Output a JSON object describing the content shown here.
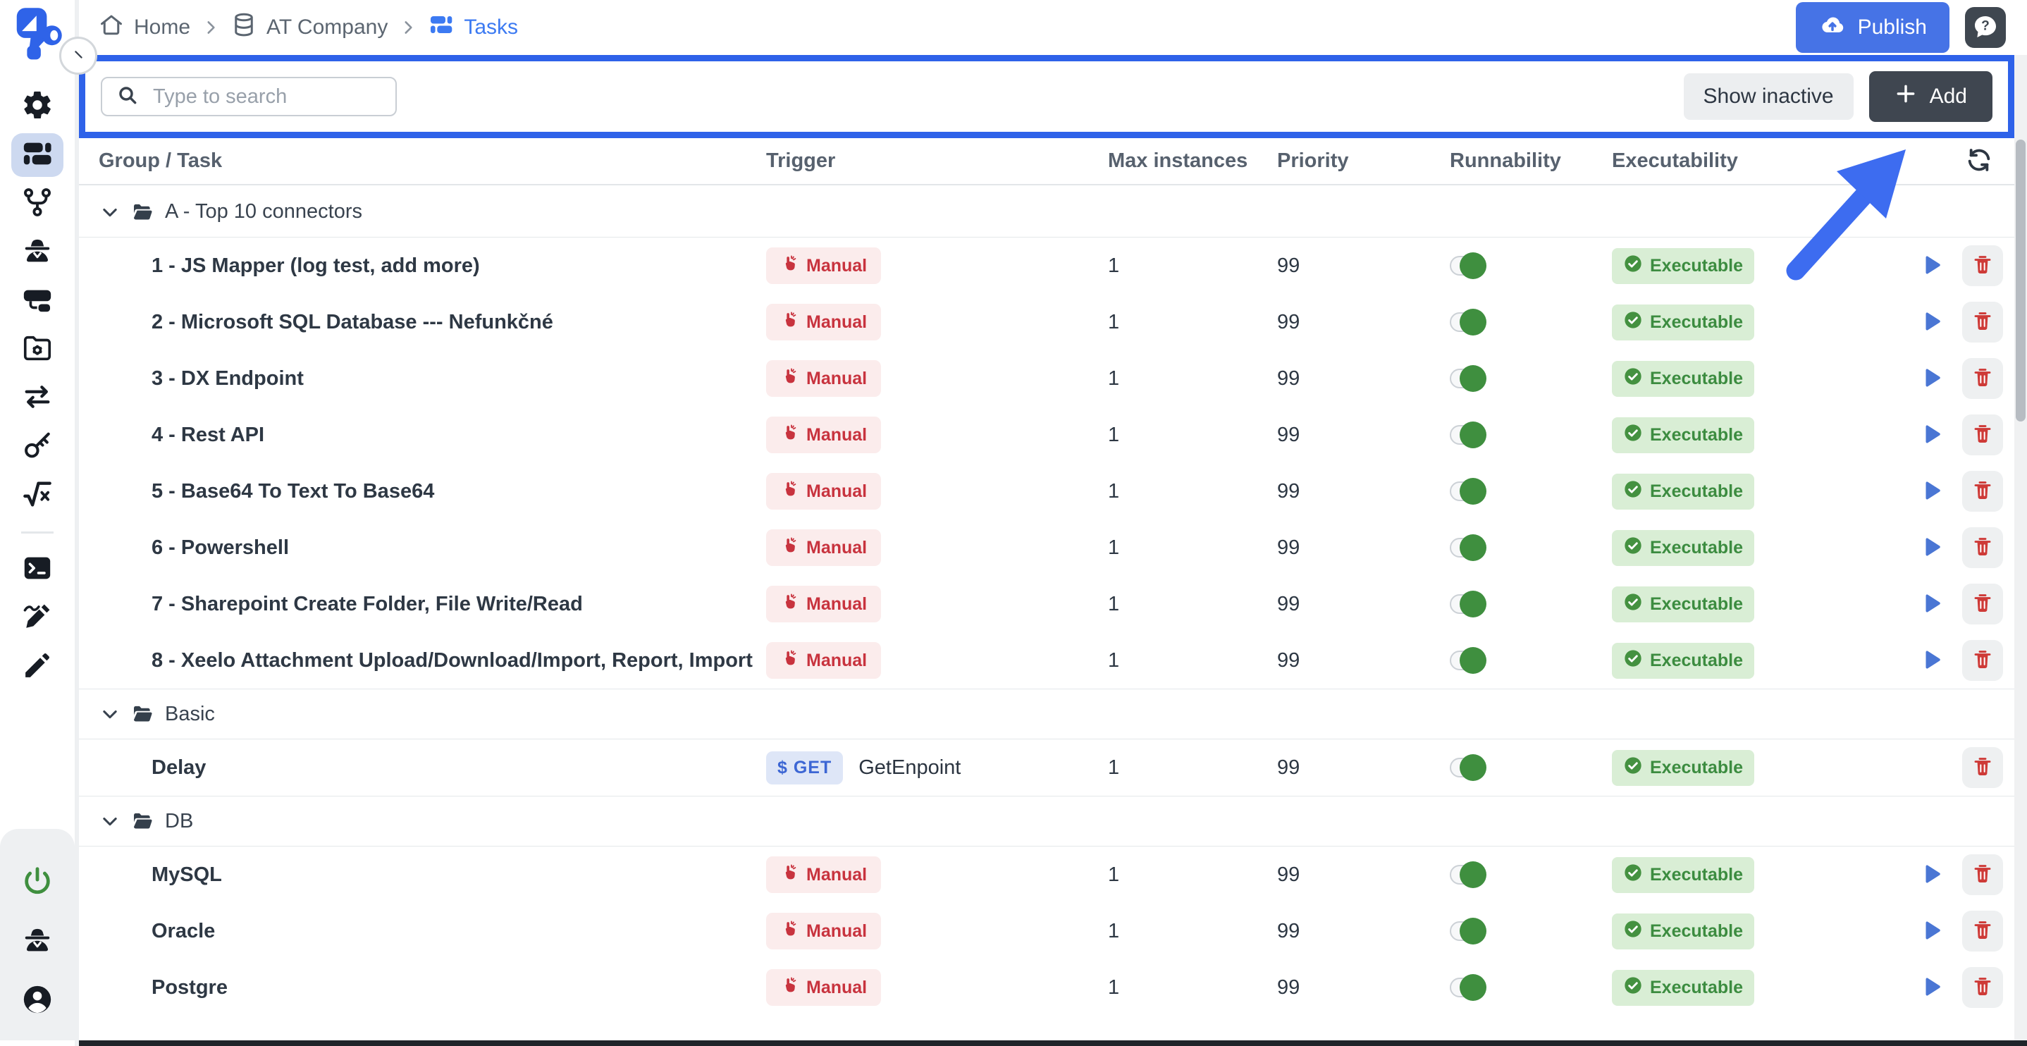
{
  "colors": {
    "highlight_border": "#2e62e9",
    "annotation_arrow": "#3d6cf0",
    "publish_blue": "#4673e6",
    "breadcrumb_active_blue": "#3c7af2",
    "manual_red": "#c8333e",
    "executable_green": "#3c8c40",
    "toggle_green": "#3f8f3f"
  },
  "sidebar": {
    "top_items": [
      {
        "icon": "gear-icon",
        "key": "gear",
        "active": false
      },
      {
        "icon": "tasks-icon",
        "key": "tasks",
        "active": true
      },
      {
        "icon": "branch-icon",
        "key": "branch",
        "active": false
      },
      {
        "icon": "agent-icon",
        "key": "agent",
        "active": false
      },
      {
        "icon": "connector-icon",
        "key": "connector",
        "active": false
      },
      {
        "icon": "folder-gear-icon",
        "key": "folderGear",
        "active": false
      },
      {
        "icon": "transfer-arrows-icon",
        "key": "transfer",
        "active": false
      },
      {
        "icon": "key-icon",
        "key": "key",
        "active": false
      },
      {
        "icon": "sqrt-icon",
        "key": "sqrt",
        "active": false
      }
    ],
    "middle_items": [
      {
        "icon": "terminal-icon",
        "key": "terminal"
      },
      {
        "icon": "pen-signature-icon",
        "key": "design"
      },
      {
        "icon": "pencil-icon",
        "key": "pencil"
      }
    ],
    "bottom_items": [
      {
        "icon": "power-icon",
        "key": "power",
        "green": true
      },
      {
        "icon": "spy-icon",
        "key": "agent",
        "green": false
      },
      {
        "icon": "user-icon",
        "key": "user",
        "green": false
      }
    ]
  },
  "breadcrumb": {
    "items": [
      {
        "label": "Home",
        "icon": "home-icon",
        "key": "home",
        "active": false
      },
      {
        "label": "AT Company",
        "icon": "database-icon",
        "key": "database",
        "active": false
      },
      {
        "label": "Tasks",
        "icon": "tasks-icon",
        "key": "tasks",
        "active": true
      }
    ]
  },
  "top_actions": {
    "publish_label": "Publish",
    "publish_icon": "cloud-upload-icon",
    "help_icon": "question-bubble-icon"
  },
  "toolbar": {
    "search": {
      "placeholder": "Type to search",
      "value": "",
      "icon": "search-icon"
    },
    "show_inactive_label": "Show inactive",
    "add_label": "Add",
    "add_icon": "plus-icon"
  },
  "table": {
    "headers": {
      "group_task": "Group / Task",
      "trigger": "Trigger",
      "max_instances": "Max instances",
      "priority": "Priority",
      "runnability": "Runnability",
      "executability": "Executability"
    },
    "refresh_icon": "refresh-icon"
  },
  "groups": [
    {
      "name": "A - Top 10 connectors",
      "tasks": [
        {
          "name": "1 - JS Mapper (log test, add more)",
          "trigger": {
            "type": "manual",
            "label": "Manual"
          },
          "max_instances": "1",
          "priority": "99",
          "runnable": true,
          "status": "Executable",
          "can_run": true
        },
        {
          "name": "2 - Microsoft SQL Database --- Nefunkčné",
          "trigger": {
            "type": "manual",
            "label": "Manual"
          },
          "max_instances": "1",
          "priority": "99",
          "runnable": true,
          "status": "Executable",
          "can_run": true
        },
        {
          "name": "3 - DX Endpoint",
          "trigger": {
            "type": "manual",
            "label": "Manual"
          },
          "max_instances": "1",
          "priority": "99",
          "runnable": true,
          "status": "Executable",
          "can_run": true
        },
        {
          "name": "4 - Rest API",
          "trigger": {
            "type": "manual",
            "label": "Manual"
          },
          "max_instances": "1",
          "priority": "99",
          "runnable": true,
          "status": "Executable",
          "can_run": true
        },
        {
          "name": "5 - Base64 To Text To Base64",
          "trigger": {
            "type": "manual",
            "label": "Manual"
          },
          "max_instances": "1",
          "priority": "99",
          "runnable": true,
          "status": "Executable",
          "can_run": true
        },
        {
          "name": "6 - Powershell",
          "trigger": {
            "type": "manual",
            "label": "Manual"
          },
          "max_instances": "1",
          "priority": "99",
          "runnable": true,
          "status": "Executable",
          "can_run": true
        },
        {
          "name": "7 - Sharepoint Create Folder, File Write/Read",
          "trigger": {
            "type": "manual",
            "label": "Manual"
          },
          "max_instances": "1",
          "priority": "99",
          "runnable": true,
          "status": "Executable",
          "can_run": true
        },
        {
          "name": "8 - Xeelo Attachment Upload/Download/Import, Report, Import",
          "trigger": {
            "type": "manual",
            "label": "Manual"
          },
          "max_instances": "1",
          "priority": "99",
          "runnable": true,
          "status": "Executable",
          "can_run": true
        }
      ]
    },
    {
      "name": "Basic",
      "tasks": [
        {
          "name": "Delay",
          "trigger": {
            "type": "get",
            "badge": "$ GET",
            "label": "GetEnpoint"
          },
          "max_instances": "1",
          "priority": "99",
          "runnable": true,
          "status": "Executable",
          "can_run": false
        }
      ]
    },
    {
      "name": "DB",
      "tasks": [
        {
          "name": "MySQL",
          "trigger": {
            "type": "manual",
            "label": "Manual"
          },
          "max_instances": "1",
          "priority": "99",
          "runnable": true,
          "status": "Executable",
          "can_run": true
        },
        {
          "name": "Oracle",
          "trigger": {
            "type": "manual",
            "label": "Manual"
          },
          "max_instances": "1",
          "priority": "99",
          "runnable": true,
          "status": "Executable",
          "can_run": true
        },
        {
          "name": "Postgre",
          "trigger": {
            "type": "manual",
            "label": "Manual"
          },
          "max_instances": "1",
          "priority": "99",
          "runnable": true,
          "status": "Executable",
          "can_run": true
        }
      ]
    }
  ]
}
